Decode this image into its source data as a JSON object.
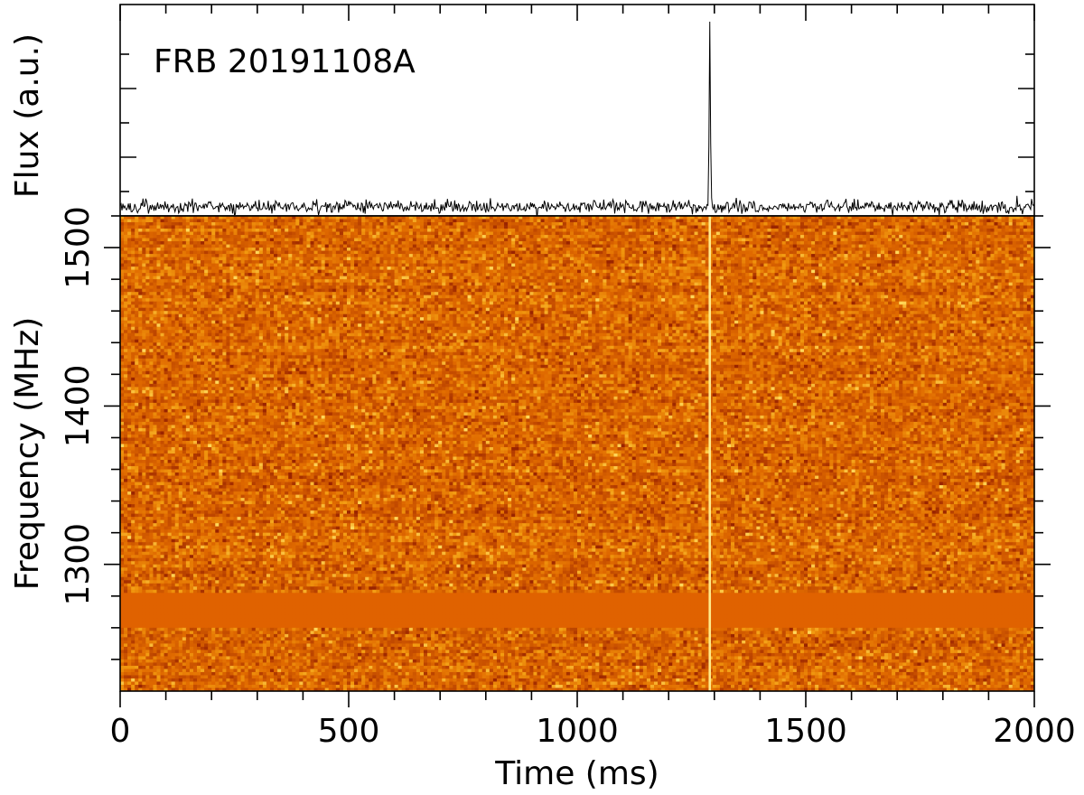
{
  "chart_data": [
    {
      "type": "line",
      "panel": "profile",
      "annotation": "FRB 20191108A",
      "ylabel": "Flux (a.u.)",
      "xlim": [
        0,
        2000
      ],
      "peak_time_ms": 1290,
      "peak_flux": 1.0,
      "baseline_flux": 0.0,
      "ylim": [
        -0.05,
        1.12
      ]
    },
    {
      "type": "heatmap",
      "panel": "dynamic-spectrum",
      "xlabel": "Time (ms)",
      "ylabel": "Frequency (MHz)",
      "xlim": [
        0,
        2000
      ],
      "ylim": [
        1220,
        1520
      ],
      "xticks": [
        0,
        500,
        1000,
        1500,
        2000
      ],
      "yticks": [
        1300,
        1400,
        1500
      ],
      "burst_time_ms": 1290,
      "masked_band_mhz": [
        1260,
        1282
      ],
      "colormap": [
        "#9a2400",
        "#c24a00",
        "#e06a00",
        "#f29a10",
        "#ffd75a"
      ]
    }
  ]
}
